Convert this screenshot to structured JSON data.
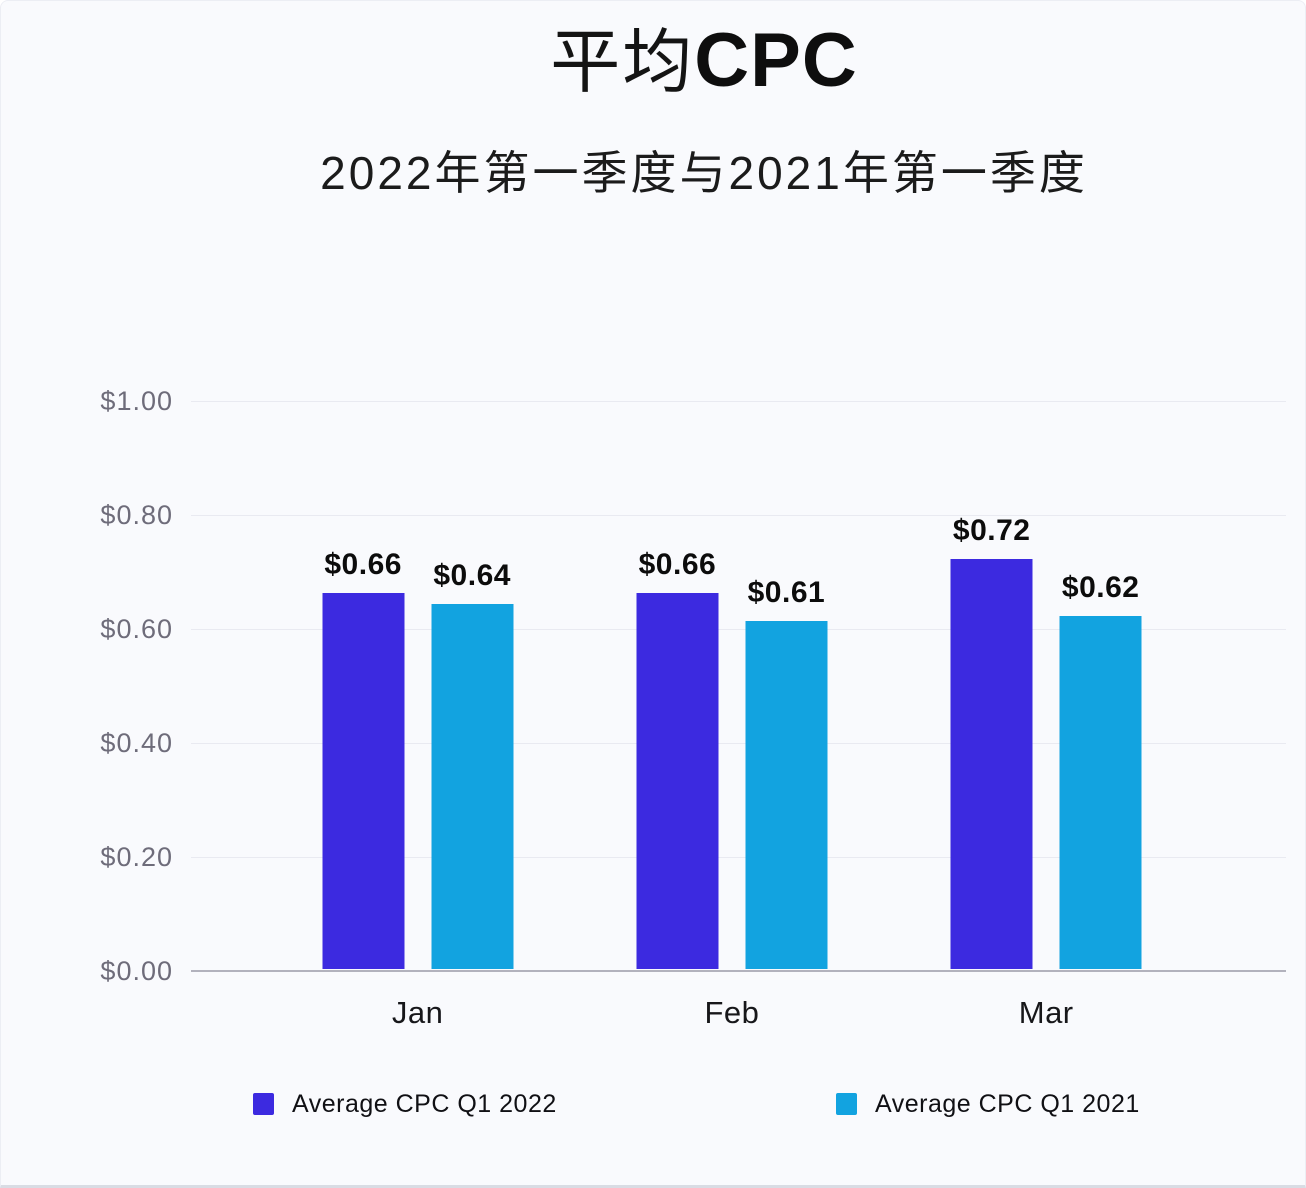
{
  "header": {
    "title_cjk": "平均",
    "title_latin": "CPC",
    "subtitle": "2022年第一季度与2021年第一季度"
  },
  "chart_data": {
    "type": "bar",
    "title": "平均CPC",
    "subtitle": "2022年第一季度与2021年第一季度",
    "categories": [
      "Jan",
      "Feb",
      "Mar"
    ],
    "series": [
      {
        "name": "Average CPC Q1 2022",
        "color": "#3c2ae0",
        "values": [
          0.66,
          0.66,
          0.72
        ],
        "value_labels": [
          "$0.66",
          "$0.66",
          "$0.72"
        ]
      },
      {
        "name": "Average CPC Q1 2021",
        "color": "#12a3e0",
        "values": [
          0.64,
          0.61,
          0.62
        ],
        "value_labels": [
          "$0.64",
          "$0.61",
          "$0.62"
        ]
      }
    ],
    "y_axis": {
      "min": 0,
      "max": 1.0,
      "ticks": [
        "$1.00",
        "$0.80",
        "$0.60",
        "$0.40",
        "$0.20",
        "$0.00"
      ],
      "tick_values": [
        1.0,
        0.8,
        0.6,
        0.4,
        0.2,
        0.0
      ]
    },
    "grid": true,
    "legend_position": "bottom"
  },
  "colors": {
    "background": "#f9fafd",
    "gridline": "#e9eaf1",
    "baseline": "#b2b2bd",
    "axis_label": "#6e6c7a",
    "text": "#0c0c0c"
  }
}
